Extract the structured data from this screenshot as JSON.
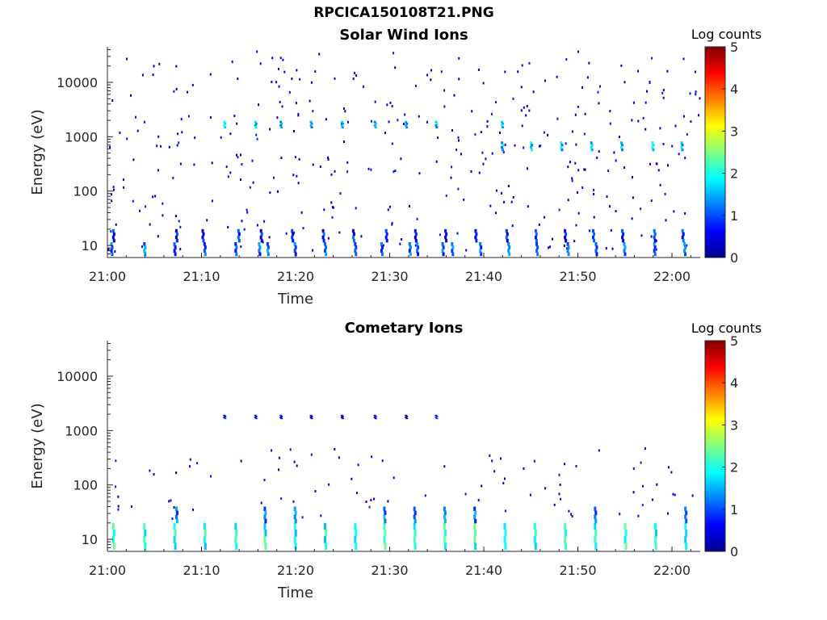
{
  "page_title": "RPCICA150108T21.PNG",
  "chart_data": [
    {
      "type": "heatmap",
      "title": "Solar Wind Ions",
      "xlabel": "Time",
      "ylabel": "Energy (eV)",
      "x_ticks": [
        "21:00",
        "21:10",
        "21:20",
        "21:30",
        "21:40",
        "21:50",
        "22:00"
      ],
      "y_ticks": [
        "10",
        "100",
        "1000",
        "10000"
      ],
      "y_scale": "log",
      "ylim": [
        6,
        45000
      ],
      "xlim_minutes": [
        0,
        63
      ],
      "colorbar": {
        "title": "Log counts",
        "ticks": [
          "0",
          "1",
          "2",
          "3",
          "4",
          "5"
        ],
        "range": [
          0,
          5
        ]
      },
      "bands": [
        {
          "e_lo": 6.5,
          "e_hi": 11.5,
          "minutes": [
            0.3,
            3.8,
            7.0,
            10.2,
            13.5,
            16.0,
            16.9,
            19.8,
            23.0,
            26.2,
            29.0,
            32.0,
            32.8,
            35.5,
            36.5,
            39.5,
            42.5,
            45.5,
            48.8,
            51.8,
            54.8,
            58.0,
            61.2
          ],
          "level": 1.1
        },
        {
          "e_lo": 11.5,
          "e_hi": 20,
          "minutes": [
            0.5,
            7.2,
            10.0,
            13.8,
            16.2,
            19.5,
            22.8,
            26.0,
            29.5,
            32.6,
            35.8,
            39.0,
            42.3,
            45.4,
            48.5,
            51.5,
            54.6,
            58.0,
            61.0
          ],
          "level": 0.8
        },
        {
          "e_lo": 1450,
          "e_hi": 1950,
          "minutes": [
            12.3,
            15.6,
            18.3,
            21.5,
            24.8,
            28.3,
            31.6,
            34.8,
            41.8
          ],
          "level": 1.5
        },
        {
          "e_lo": 550,
          "e_hi": 820,
          "minutes": [
            41.8,
            44.9,
            48.1,
            51.3,
            54.5,
            57.8,
            60.9
          ],
          "level": 1.6
        }
      ]
    },
    {
      "type": "heatmap",
      "title": "Cometary Ions",
      "xlabel": "Time",
      "ylabel": "Energy (eV)",
      "x_ticks": [
        "21:00",
        "21:10",
        "21:20",
        "21:30",
        "21:40",
        "21:50",
        "22:00"
      ],
      "y_ticks": [
        "10",
        "100",
        "1000",
        "10000"
      ],
      "y_scale": "log",
      "ylim": [
        6,
        45000
      ],
      "xlim_minutes": [
        0,
        63
      ],
      "colorbar": {
        "title": "Log counts",
        "ticks": [
          "0",
          "1",
          "2",
          "3",
          "4",
          "5"
        ],
        "range": [
          0,
          5
        ]
      },
      "bands": [
        {
          "e_lo": 6.5,
          "e_hi": 20,
          "minutes": [
            0.5,
            3.8,
            7.0,
            10.2,
            13.5,
            16.6,
            19.8,
            23.0,
            26.2,
            29.3,
            32.5,
            35.7,
            38.9,
            42.1,
            45.3,
            48.5,
            51.7,
            54.9,
            58.1,
            61.3
          ],
          "level": 2.0
        },
        {
          "e_lo": 20,
          "e_hi": 40,
          "minutes": [
            7.2,
            16.6,
            19.8,
            29.3,
            32.5,
            35.7,
            38.9,
            51.7,
            61.3
          ],
          "level": 1.2
        },
        {
          "e_lo": 1650,
          "e_hi": 1950,
          "minutes": [
            12.3,
            15.6,
            18.3,
            21.5,
            24.8,
            28.3,
            31.6,
            34.8
          ],
          "level": 0.6
        }
      ]
    }
  ]
}
